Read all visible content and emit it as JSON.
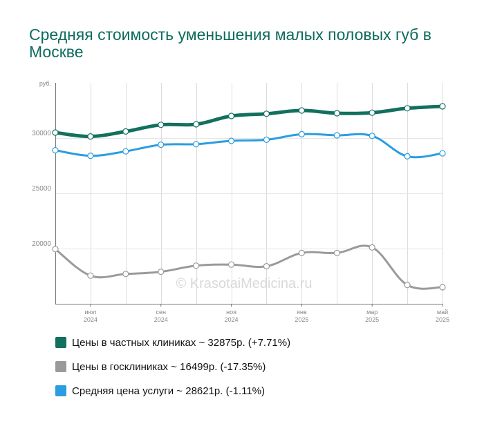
{
  "title": "Средняя стоимость уменьшения малых половых губ в Москве",
  "watermark": "© KrasotaiMedicina.ru",
  "chart_data": {
    "type": "line",
    "y_unit_label": "руб.",
    "ylim": [
      15000,
      35000
    ],
    "y_ticks": [
      "20000",
      "25000",
      "30000"
    ],
    "y_tick_values": [
      20000,
      25000,
      30000
    ],
    "x_count": 12,
    "x_tick_labels": [
      {
        "index": 1,
        "month": "июл",
        "year": "2024"
      },
      {
        "index": 3,
        "month": "сен",
        "year": "2024"
      },
      {
        "index": 5,
        "month": "ноя",
        "year": "2024"
      },
      {
        "index": 7,
        "month": "янв",
        "year": "2025"
      },
      {
        "index": 9,
        "month": "мар",
        "year": "2025"
      },
      {
        "index": 11,
        "month": "май",
        "year": "2025"
      }
    ],
    "grid": true,
    "series": [
      {
        "name": "Цены в частных клиниках",
        "color": "#13705f",
        "values": [
          30500,
          30150,
          30600,
          31200,
          31250,
          32000,
          32200,
          32500,
          32250,
          32300,
          32700,
          32875
        ]
      },
      {
        "name": "Цены в госклиниках",
        "color": "#9a9a9a",
        "values": [
          19950,
          17550,
          17700,
          17900,
          18450,
          18550,
          18400,
          19600,
          19600,
          20100,
          16700,
          16499
        ]
      },
      {
        "name": "Средняя цена услуги",
        "color": "#2b9de0",
        "values": [
          28900,
          28400,
          28800,
          29400,
          29450,
          29750,
          29850,
          30350,
          30250,
          30200,
          28350,
          28621
        ]
      }
    ]
  },
  "legend": [
    {
      "text": "Цены в частных клиниках ~ 32875р. (+7.71%)",
      "color": "#13705f"
    },
    {
      "text": "Цены в госклиниках ~ 16499р. (-17.35%)",
      "color": "#9a9a9a"
    },
    {
      "text": "Средняя цена услуги ~ 28621р. (-1.11%)",
      "color": "#2b9de0"
    }
  ]
}
